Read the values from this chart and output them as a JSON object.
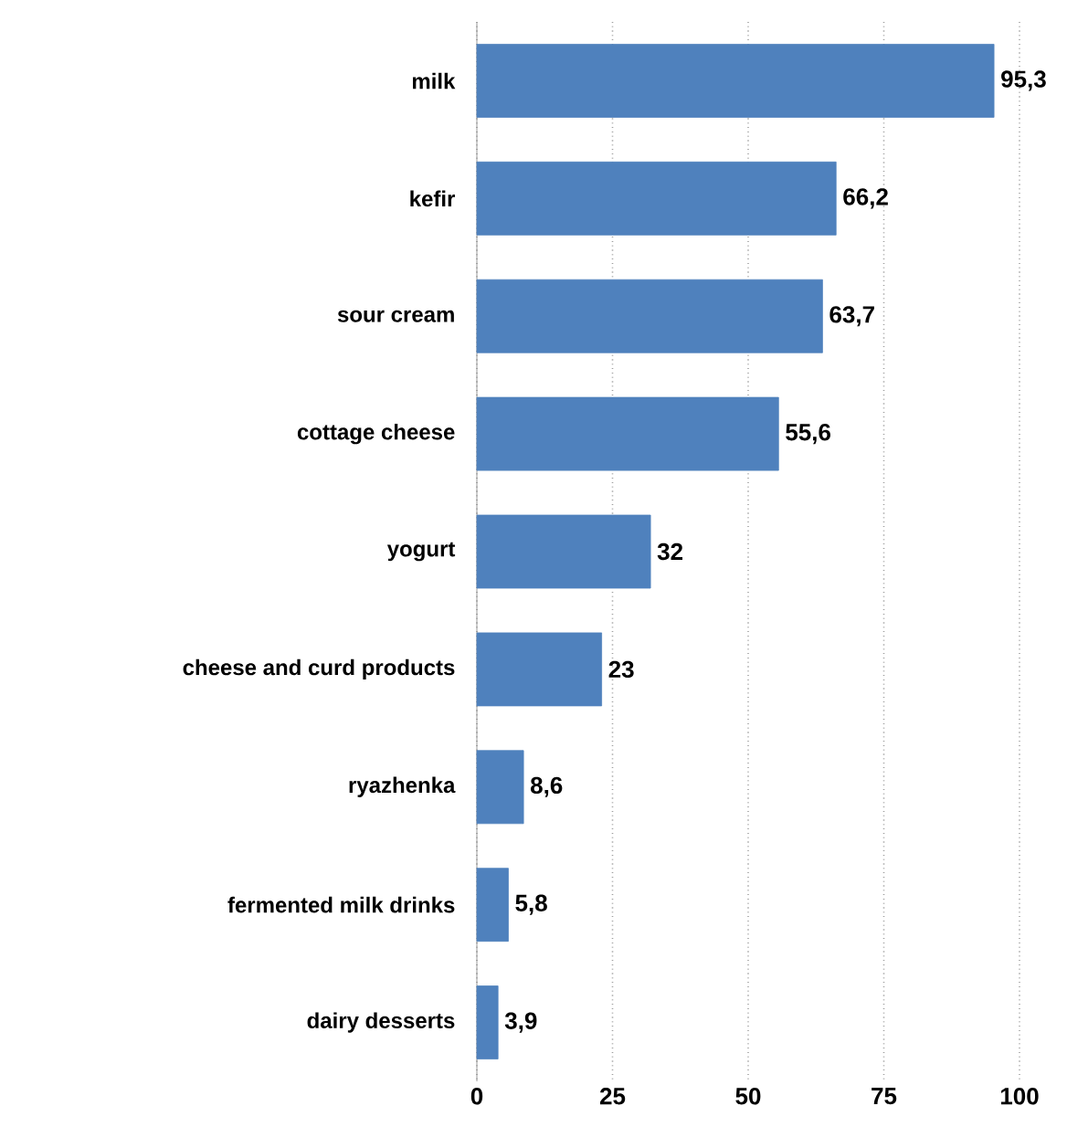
{
  "chart_data": {
    "type": "bar",
    "orientation": "horizontal",
    "categories": [
      "milk",
      "kefir",
      "sour cream",
      "cottage cheese",
      "yogurt",
      "cheese and curd products",
      "ryazhenka",
      "fermented milk drinks",
      "dairy desserts"
    ],
    "values": [
      95.3,
      66.2,
      63.7,
      55.6,
      32,
      23,
      8.6,
      5.8,
      3.9
    ],
    "value_labels": [
      "95,3",
      "66,2",
      "63,7",
      "55,6",
      "32",
      "23",
      "8,6",
      "5,8",
      "3,9"
    ],
    "color": "#4f81bd",
    "xlim": [
      0,
      100
    ],
    "xticks": [
      0,
      25,
      50,
      75,
      100
    ],
    "grid": "x"
  }
}
